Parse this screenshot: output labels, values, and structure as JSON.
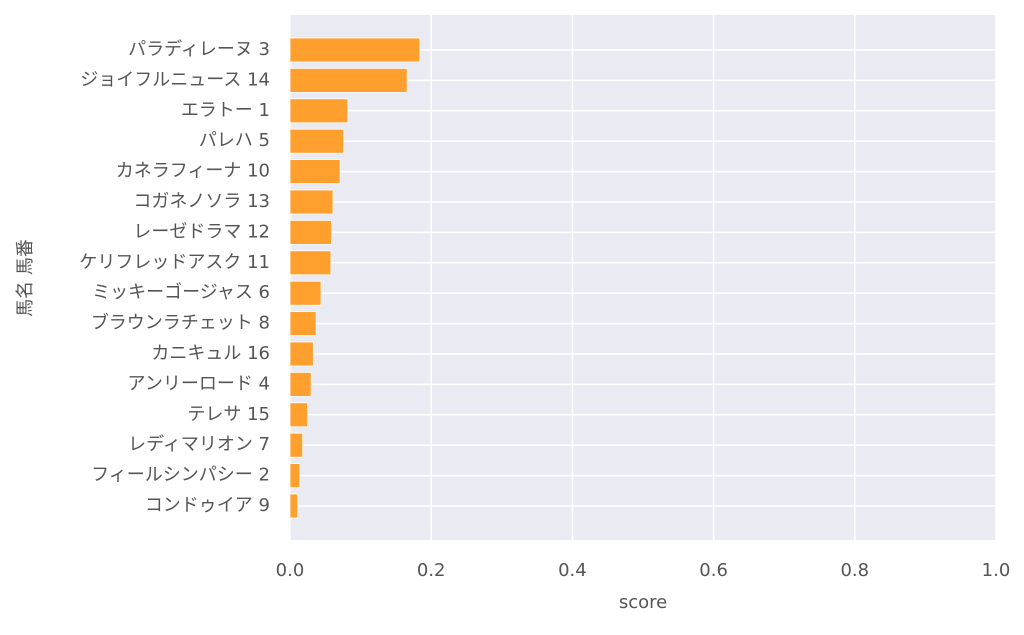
{
  "chart_data": {
    "type": "barh",
    "ylabel": "馬名 馬番",
    "xlabel": "score",
    "categories": [
      "パラディレーヌ 3",
      "ジョイフルニュース 14",
      "エラトー 1",
      "パレハ 5",
      "カネラフィーナ 10",
      "コガネノソラ 13",
      "レーゼドラマ 12",
      "ケリフレッドアスク 11",
      "ミッキーゴージャス 6",
      "ブラウンラチェット 8",
      "カニキュル 16",
      "アンリーロード 4",
      "テレサ 15",
      "レディマリオン 7",
      "フィールシンパシー 2",
      "コンドゥイア 9"
    ],
    "values": [
      0.184,
      0.166,
      0.082,
      0.076,
      0.071,
      0.061,
      0.059,
      0.058,
      0.044,
      0.037,
      0.033,
      0.03,
      0.025,
      0.018,
      0.014,
      0.011
    ],
    "color": "#ff9f2e",
    "xlim": [
      0,
      1
    ],
    "xticks": [
      {
        "value": 0,
        "label": "0.0"
      },
      0.2,
      0.4,
      0.6,
      0.8,
      {
        "value": 1,
        "label": "1.0"
      }
    ],
    "grid": true
  }
}
